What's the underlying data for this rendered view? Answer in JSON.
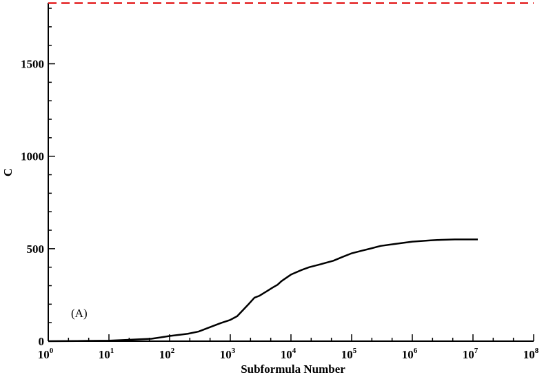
{
  "chart_data": {
    "type": "line",
    "title": "",
    "xlabel": "Subformula Number",
    "ylabel": "C",
    "x_scale": "log",
    "xlim": [
      1,
      100000000
    ],
    "ylim": [
      0,
      1830
    ],
    "x_ticks": [
      1,
      10,
      100,
      1000,
      10000,
      100000,
      1000000,
      10000000,
      100000000
    ],
    "x_tick_base": "10",
    "x_tick_exponents": [
      "0",
      "1",
      "2",
      "3",
      "4",
      "5",
      "6",
      "7",
      "8"
    ],
    "y_ticks": [
      0,
      500,
      1000,
      1500
    ],
    "y_tick_labels": [
      "0",
      "500",
      "1000",
      "1500"
    ],
    "annotation": "(A)",
    "grid": false,
    "series": [
      {
        "color": "#000000",
        "style": "solid",
        "x": [
          1,
          3,
          5,
          10,
          20,
          30,
          50,
          70,
          100,
          150,
          200,
          300,
          500,
          700,
          1000,
          1300,
          2000,
          2500,
          3000,
          4000,
          5000,
          6000,
          7000,
          10000,
          15000,
          20000,
          30000,
          50000,
          70000,
          100000,
          150000,
          200000,
          300000,
          500000,
          1000000,
          2000000,
          3000000,
          5000000,
          12000000
        ],
        "y": [
          0,
          1,
          2,
          3,
          7,
          10,
          13,
          20,
          28,
          35,
          40,
          52,
          80,
          98,
          115,
          135,
          200,
          235,
          245,
          270,
          290,
          305,
          325,
          360,
          385,
          400,
          415,
          435,
          455,
          475,
          490,
          500,
          515,
          525,
          538,
          545,
          548,
          550,
          550
        ]
      },
      {
        "color": "#e31a1c",
        "style": "dashed",
        "x": [
          1,
          100000000
        ],
        "y": [
          1828,
          1828
        ]
      }
    ]
  }
}
